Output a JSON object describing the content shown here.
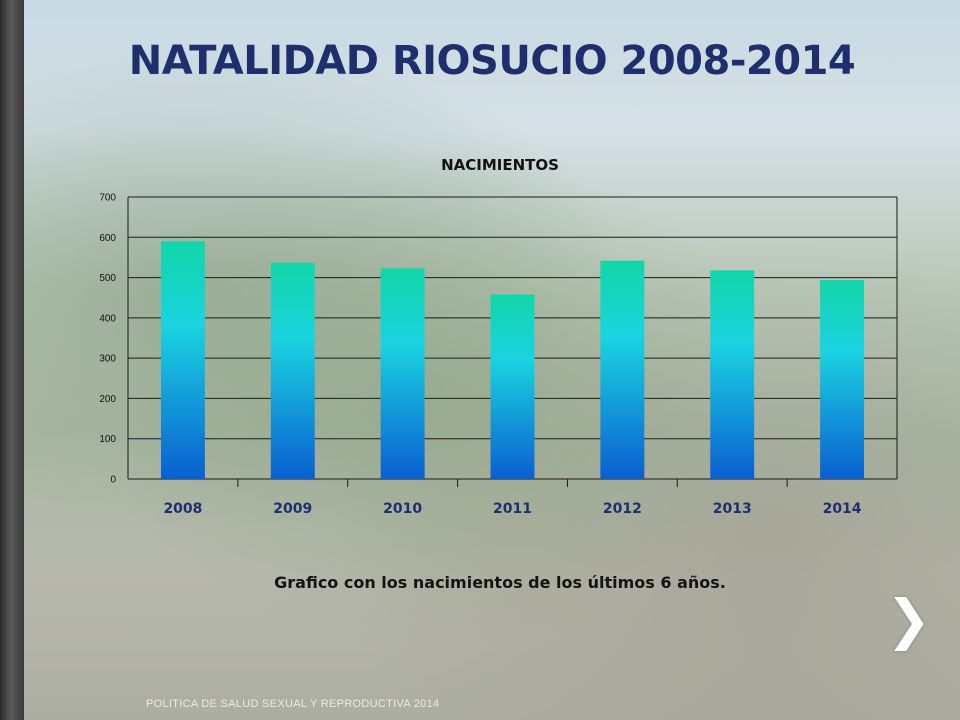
{
  "slide": {
    "title": "NATALIDAD RIOSUCIO 2008-2014",
    "caption": "Grafico con los nacimientos de los últimos 6 años.",
    "footer": "POLITICA DE SALUD SEXUAL Y REPRODUCTIVA 2014",
    "next_icon": "chevron-right-icon"
  },
  "chart_data": {
    "type": "bar",
    "title": "NACIMIENTOS",
    "categories": [
      "2008",
      "2009",
      "2010",
      "2011",
      "2012",
      "2013",
      "2014"
    ],
    "values": [
      590,
      537,
      523,
      458,
      542,
      518,
      494
    ],
    "ylim": [
      0,
      700
    ],
    "yticks": [
      0,
      100,
      200,
      300,
      400,
      500,
      600,
      700
    ],
    "grid": true,
    "xlabel": "",
    "ylabel": "",
    "colors": {
      "bar_top": "#12d6a8",
      "bar_mid": "#1ad4e0",
      "bar_bottom": "#0a5fd0",
      "category_label": "#1f2f6e"
    }
  }
}
